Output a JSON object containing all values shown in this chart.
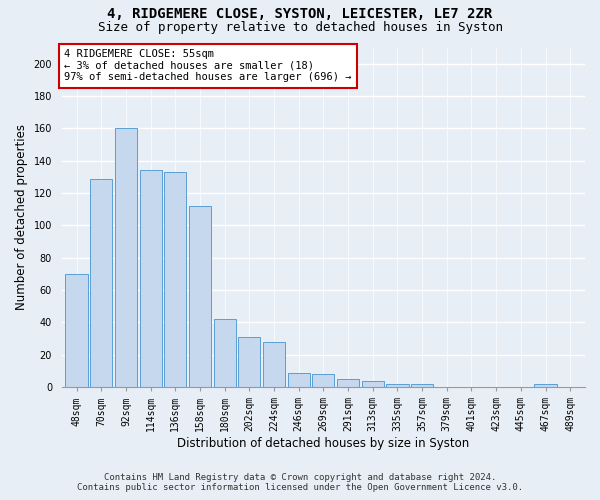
{
  "title1": "4, RIDGEMERE CLOSE, SYSTON, LEICESTER, LE7 2ZR",
  "title2": "Size of property relative to detached houses in Syston",
  "xlabel": "Distribution of detached houses by size in Syston",
  "ylabel": "Number of detached properties",
  "footnote1": "Contains HM Land Registry data © Crown copyright and database right 2024.",
  "footnote2": "Contains public sector information licensed under the Open Government Licence v3.0.",
  "annotation_title": "4 RIDGEMERE CLOSE: 55sqm",
  "annotation_line2": "← 3% of detached houses are smaller (18)",
  "annotation_line3": "97% of semi-detached houses are larger (696) →",
  "bar_labels": [
    "48sqm",
    "70sqm",
    "92sqm",
    "114sqm",
    "136sqm",
    "158sqm",
    "180sqm",
    "202sqm",
    "224sqm",
    "246sqm",
    "269sqm",
    "291sqm",
    "313sqm",
    "335sqm",
    "357sqm",
    "379sqm",
    "401sqm",
    "423sqm",
    "445sqm",
    "467sqm",
    "489sqm"
  ],
  "bar_values": [
    70,
    129,
    160,
    134,
    133,
    112,
    42,
    31,
    28,
    9,
    8,
    5,
    4,
    2,
    2,
    0,
    0,
    0,
    0,
    2,
    0
  ],
  "bar_color": "#c5d8ee",
  "bar_edge_color": "#5a9fd4",
  "ylim": [
    0,
    210
  ],
  "yticks": [
    0,
    20,
    40,
    60,
    80,
    100,
    120,
    140,
    160,
    180,
    200
  ],
  "background_color": "#e8eef6",
  "plot_bg_color": "#e8eef6",
  "grid_color": "#ffffff",
  "annotation_box_color": "#ffffff",
  "annotation_box_edge": "#cc0000",
  "title1_fontsize": 10,
  "title2_fontsize": 9,
  "xlabel_fontsize": 8.5,
  "ylabel_fontsize": 8.5,
  "tick_fontsize": 7,
  "footnote_fontsize": 6.5,
  "annotation_fontsize": 7.5
}
